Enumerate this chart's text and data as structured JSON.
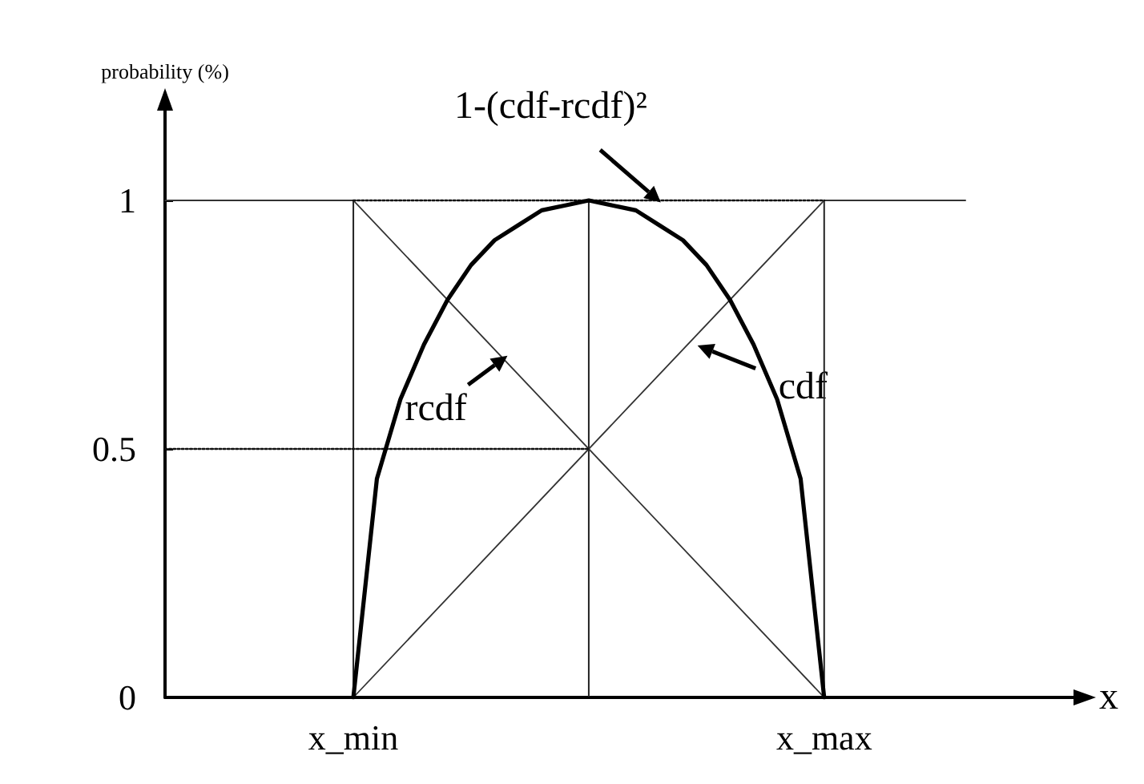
{
  "chart_data": {
    "type": "line",
    "xlabel": "x",
    "ylabel": "probability (%)",
    "categories": [
      null,
      null,
      null,
      null,
      null,
      null,
      null,
      null,
      "x_min",
      null,
      null,
      null,
      null,
      null,
      null,
      null,
      null,
      null,
      null,
      null,
      null,
      null,
      null,
      null,
      null,
      null,
      null,
      null,
      "x_max",
      null,
      null,
      null,
      null,
      null,
      null,
      null,
      null,
      null,
      null,
      null
    ],
    "ylim": [
      0,
      1.2
    ],
    "yticks": [
      0,
      0.5,
      1
    ],
    "series": [
      {
        "color": "#000000",
        "values": [
          null,
          null,
          null,
          null,
          null,
          null,
          null,
          null,
          0,
          0.44,
          0.6,
          0.71,
          0.8,
          0.87,
          0.92,
          0.95,
          0.98,
          0.99,
          1,
          0.99,
          0.98,
          0.95,
          0.92,
          0.87,
          0.8,
          0.71,
          0.6,
          0.44,
          0,
          null,
          null,
          null,
          null,
          null,
          null,
          null,
          null,
          null,
          null,
          null
        ]
      },
      {
        "color": "#333333",
        "values": [
          null,
          null,
          null,
          null,
          null,
          null,
          null,
          null,
          0,
          null,
          null,
          null,
          null,
          null,
          null,
          null,
          null,
          null,
          null,
          null,
          null,
          null,
          null,
          null,
          null,
          null,
          null,
          null,
          1,
          null,
          null,
          null,
          null,
          null,
          1,
          null,
          null,
          null,
          null,
          null
        ]
      },
      {
        "color": "#333333",
        "values": [
          1,
          null,
          null,
          null,
          null,
          null,
          null,
          null,
          1,
          null,
          null,
          null,
          null,
          null,
          null,
          null,
          null,
          null,
          null,
          null,
          null,
          null,
          null,
          null,
          null,
          null,
          null,
          null,
          0,
          null,
          null,
          null,
          null,
          null,
          null,
          null,
          null,
          null,
          null,
          null
        ]
      },
      {
        "color": "#111111",
        "line_style": "dotted",
        "values": [
          0.5,
          null,
          null,
          null,
          null,
          null,
          null,
          null,
          null,
          null,
          null,
          null,
          null,
          null,
          null,
          null,
          null,
          null,
          0.5,
          null,
          null,
          null,
          null,
          null,
          null,
          null,
          null,
          null,
          null,
          null,
          null,
          null,
          null,
          null,
          null,
          null,
          null,
          null,
          null,
          null
        ]
      },
      {
        "color": "#111111",
        "line_style": "dotted",
        "values": [
          null,
          null,
          null,
          null,
          null,
          null,
          null,
          null,
          1,
          null,
          null,
          null,
          null,
          null,
          null,
          null,
          null,
          null,
          null,
          null,
          null,
          null,
          null,
          null,
          null,
          null,
          null,
          null,
          1,
          null,
          null,
          null,
          null,
          null,
          null,
          null,
          null,
          null,
          null,
          null
        ]
      },
      {
        "type": "bar",
        "color": "#222222",
        "line_style": "dotted",
        "values": [
          null,
          null,
          null,
          null,
          null,
          null,
          null,
          null,
          1,
          null,
          null,
          null,
          null,
          null,
          null,
          null,
          null,
          null,
          1,
          null,
          null,
          null,
          null,
          null,
          null,
          null,
          null,
          null,
          1,
          null,
          null,
          null,
          null,
          null,
          null,
          null,
          null,
          null,
          null,
          null
        ]
      }
    ],
    "annotations": [
      "1-(cdf-rcdf)²",
      "rcdf",
      "cdf"
    ],
    "marker": "none",
    "grid": false
  }
}
